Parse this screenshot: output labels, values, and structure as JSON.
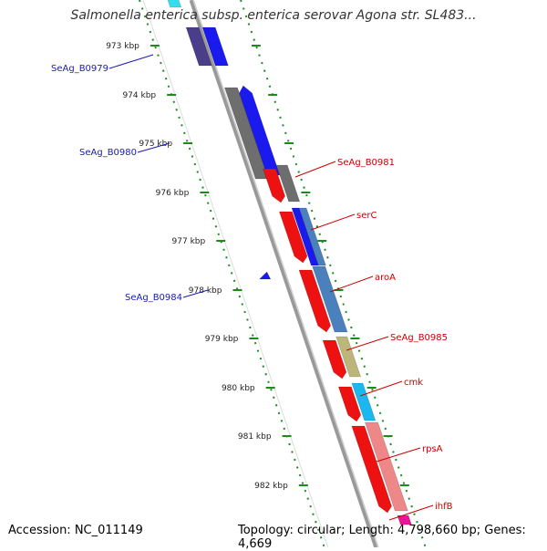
{
  "title": "Salmonella enterica subsp. enterica serovar Agona str. SL483...",
  "accession_label": "Accession: NC_011149",
  "summary_label": "Topology: circular; Length: 4,798,660 bp; Genes: 4,669",
  "colors": {
    "backbone": "#999999",
    "tick": "#1e8a1e",
    "label_left": "#1a1ab4",
    "label_right": "#cc0000",
    "kbp_text": "#222222"
  },
  "kbp_labels": [
    {
      "text": "973 kbp",
      "kbp": 973
    },
    {
      "text": "974 kbp",
      "kbp": 974
    },
    {
      "text": "975 kbp",
      "kbp": 975
    },
    {
      "text": "976 kbp",
      "kbp": 976
    },
    {
      "text": "977 kbp",
      "kbp": 977
    },
    {
      "text": "978 kbp",
      "kbp": 978
    },
    {
      "text": "979 kbp",
      "kbp": 979
    },
    {
      "text": "980 kbp",
      "kbp": 980
    },
    {
      "text": "981 kbp",
      "kbp": 981
    },
    {
      "text": "982 kbp",
      "kbp": 982
    }
  ],
  "gene_labels_left": [
    {
      "text": "SeAg_B0979",
      "color": "#1a1ab4"
    },
    {
      "text": "SeAg_B0980",
      "color": "#1a1ab4"
    },
    {
      "text": "SeAg_B0984",
      "color": "#1a1ab4"
    }
  ],
  "gene_labels_right": [
    {
      "text": "SeAg_B0981",
      "color": "#cc0000"
    },
    {
      "text": "serC",
      "color": "#cc0000"
    },
    {
      "text": "aroA",
      "color": "#cc0000"
    },
    {
      "text": "SeAg_B0985",
      "color": "#cc0000"
    },
    {
      "text": "cmk",
      "color": "#cc0000"
    },
    {
      "text": "rpsA",
      "color": "#cc0000"
    },
    {
      "text": "ihfB",
      "color": "#cc0000"
    }
  ],
  "features": [
    {
      "name": "cyan-top-feature",
      "color": "#33ddee",
      "kind": "gene"
    },
    {
      "name": "dark-purple-feature",
      "color": "#4a3d8a",
      "kind": "gene"
    },
    {
      "name": "blue-top-feature",
      "color": "#1a1aee",
      "kind": "gene"
    },
    {
      "name": "gray-b0980-feature",
      "color": "#6e6e6e",
      "kind": "gene"
    },
    {
      "name": "blue-b0980-feature",
      "color": "#1a1aee",
      "kind": "gene"
    },
    {
      "name": "red-b0981-feature",
      "color": "#ee1111",
      "kind": "gene"
    },
    {
      "name": "gray-b0981-feature",
      "color": "#6e6e6e",
      "kind": "gene"
    },
    {
      "name": "red-serc-feature",
      "color": "#ee1111",
      "kind": "gene"
    },
    {
      "name": "blue-serc-feature",
      "color": "#1a1aee",
      "kind": "gene"
    },
    {
      "name": "steelblue-serc-feature",
      "color": "#4a80bb",
      "kind": "gene"
    },
    {
      "name": "red-aroa-feature",
      "color": "#ee1111",
      "kind": "gene"
    },
    {
      "name": "steelblue-aroa-feature",
      "color": "#4a80bb",
      "kind": "gene"
    },
    {
      "name": "red-b0985-feature",
      "color": "#ee1111",
      "kind": "gene"
    },
    {
      "name": "olive-b0985-feature",
      "color": "#bcb67a",
      "kind": "gene"
    },
    {
      "name": "red-cmk-feature",
      "color": "#ee1111",
      "kind": "gene"
    },
    {
      "name": "cyan-cmk-feature",
      "color": "#1ab8ee",
      "kind": "gene"
    },
    {
      "name": "red-rpsa-feature",
      "color": "#ee1111",
      "kind": "gene"
    },
    {
      "name": "salmon-rpsa-feature",
      "color": "#ee8888",
      "kind": "gene"
    },
    {
      "name": "magenta-ihfb-feature",
      "color": "#ee1199",
      "kind": "gene"
    },
    {
      "name": "small-blue-b0984-feature",
      "color": "#1a1aee",
      "kind": "gene"
    }
  ]
}
